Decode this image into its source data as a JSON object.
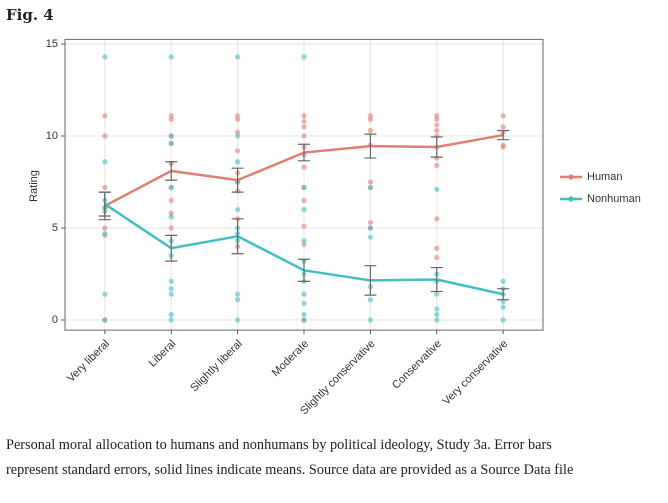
{
  "figure_label": "Fig. 4",
  "chart_data": {
    "type": "line",
    "y_label": "Rating",
    "categories": [
      "Very liberal",
      "Liberal",
      "Slightly liberal",
      "Moderate",
      "Slightly conservative",
      "Conservative",
      "Very conservative"
    ],
    "ylim": [
      -0.55,
      15.25
    ],
    "yticks": [
      0,
      5,
      10,
      15
    ],
    "grid": true,
    "legend": "right",
    "series": [
      {
        "name": "Human",
        "color": "#e07f73",
        "values": [
          6.2,
          8.1,
          7.6,
          9.1,
          9.45,
          9.4,
          10.05
        ],
        "errors": [
          0.75,
          0.5,
          0.65,
          0.45,
          0.65,
          0.55,
          0.25
        ],
        "points": [
          [
            11.1,
            10,
            7.2,
            6.1,
            5,
            4.6,
            0
          ],
          [
            11.1,
            10.9,
            10,
            9.6,
            8.5,
            7.2,
            6.5,
            5.8,
            5
          ],
          [
            11.1,
            10.9,
            10.2,
            9.2,
            8,
            7.5,
            7,
            5.5,
            4
          ],
          [
            11.1,
            10.8,
            10.5,
            10,
            9.4,
            9,
            8.3,
            7.2,
            6.5,
            5.1,
            4.1,
            0
          ],
          [
            11.1,
            10.9,
            10.3,
            9.5,
            7.5,
            7.2,
            5.3,
            5
          ],
          [
            11.1,
            10.9,
            10.6,
            10.3,
            10,
            9.4,
            8.8,
            8.4,
            5.5,
            3.9,
            3.4
          ],
          [
            11.1,
            10.5,
            10.2,
            9.5,
            9.4
          ]
        ]
      },
      {
        "name": "Nonhuman",
        "color": "#41bfc3",
        "values": [
          6.3,
          3.9,
          4.55,
          2.7,
          2.15,
          2.2,
          1.4
        ],
        "errors": [
          0.65,
          0.7,
          0.95,
          0.6,
          0.8,
          0.65,
          0.3
        ],
        "points": [
          [
            14.3,
            8.6,
            6.5,
            6.1,
            5.9,
            4.7,
            1.4,
            0
          ],
          [
            14.3,
            10,
            9.6,
            7.2,
            5.6,
            4.3,
            3.5,
            2.1,
            1.7,
            1.4,
            0.3,
            0
          ],
          [
            14.3,
            10,
            8.6,
            7.5,
            6,
            5,
            4.7,
            4.3,
            1.4,
            1.1,
            0
          ],
          [
            14.3,
            7.2,
            6,
            4.3,
            3.2,
            2.5,
            2.1,
            1.4,
            0.9,
            0.3,
            0
          ],
          [
            7.2,
            5,
            4.5,
            1.8,
            1.1,
            0
          ],
          [
            7.1,
            2.5,
            2.1,
            1.4,
            0.6,
            0.3,
            0
          ],
          [
            2.1,
            1.7,
            1.4,
            1,
            0.7,
            0
          ]
        ]
      }
    ]
  },
  "caption": [
    "Personal moral allocation to humans and nonhumans by political ideology, Study 3a. Error bars",
    "represent standard errors, solid lines indicate means. Source data are provided as a Source Data file"
  ]
}
